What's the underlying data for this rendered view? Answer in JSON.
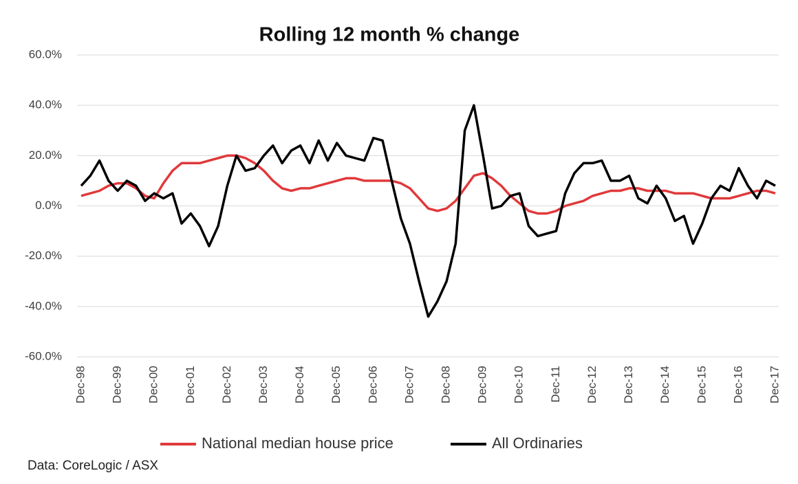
{
  "chart_data": {
    "type": "line",
    "title": "Rolling 12 month % change",
    "categories": [
      "Dec-98",
      null,
      null,
      null,
      "Dec-99",
      null,
      null,
      null,
      "Dec-00",
      null,
      null,
      null,
      "Dec-01",
      null,
      null,
      null,
      "Dec-02",
      null,
      null,
      null,
      "Dec-03",
      null,
      null,
      null,
      "Dec-04",
      null,
      null,
      null,
      "Dec-05",
      null,
      null,
      null,
      "Dec-06",
      null,
      null,
      null,
      "Dec-07",
      null,
      null,
      null,
      "Dec-08",
      null,
      null,
      null,
      "Dec-09",
      null,
      null,
      null,
      "Dec-10",
      null,
      null,
      null,
      "Dec-11",
      null,
      null,
      null,
      "Dec-12",
      null,
      null,
      null,
      "Dec-13",
      null,
      null,
      null,
      "Dec-14",
      null,
      null,
      null,
      "Dec-15",
      null,
      null,
      null,
      "Dec-16",
      null,
      null,
      null,
      "Dec-17"
    ],
    "series": [
      {
        "name": "National median house price",
        "color": "#e0393b",
        "values": [
          4,
          5,
          6,
          8,
          9,
          9,
          7,
          4,
          3,
          9,
          14,
          17,
          17,
          17,
          18,
          19,
          20,
          20,
          19,
          17,
          14,
          10,
          7,
          6,
          7,
          7,
          8,
          9,
          10,
          11,
          11,
          10,
          10,
          10,
          10,
          9,
          7,
          3,
          -1,
          -2,
          -1,
          2,
          7,
          12,
          13,
          11,
          8,
          4,
          1,
          -2,
          -3,
          -3,
          -2,
          0,
          1,
          2,
          4,
          5,
          6,
          6,
          7,
          7,
          6,
          6,
          6,
          5,
          5,
          5,
          4,
          3,
          3,
          3,
          4,
          5,
          6,
          6,
          5
        ]
      },
      {
        "name": "All Ordinaries",
        "color": "#000000",
        "values": [
          8,
          12,
          18,
          10,
          6,
          10,
          8,
          2,
          5,
          3,
          5,
          -7,
          -3,
          -8,
          -16,
          -8,
          8,
          20,
          14,
          15,
          20,
          24,
          17,
          22,
          24,
          17,
          26,
          18,
          25,
          20,
          19,
          18,
          27,
          26,
          10,
          -5,
          -15,
          -30,
          -44,
          -38,
          -30,
          -15,
          30,
          40,
          20,
          -1,
          0,
          4,
          5,
          -8,
          -12,
          -11,
          -10,
          5,
          13,
          17,
          17,
          18,
          10,
          10,
          12,
          3,
          1,
          8,
          3,
          -6,
          -4,
          -15,
          -7,
          3,
          8,
          6,
          15,
          8,
          3,
          10,
          8
        ]
      }
    ],
    "ylim": [
      -60,
      60
    ],
    "yticks": [
      {
        "value": -60,
        "label": "-60.0%"
      },
      {
        "value": -40,
        "label": "-40.0%"
      },
      {
        "value": -20,
        "label": "-20.0%"
      },
      {
        "value": 0,
        "label": "0.0%"
      },
      {
        "value": 20,
        "label": "20.0%"
      },
      {
        "value": 40,
        "label": "40.0%"
      },
      {
        "value": 60,
        "label": "60.0%"
      }
    ],
    "grid": true,
    "legend": "bottom",
    "source": "Data: CoreLogic / ASX"
  }
}
